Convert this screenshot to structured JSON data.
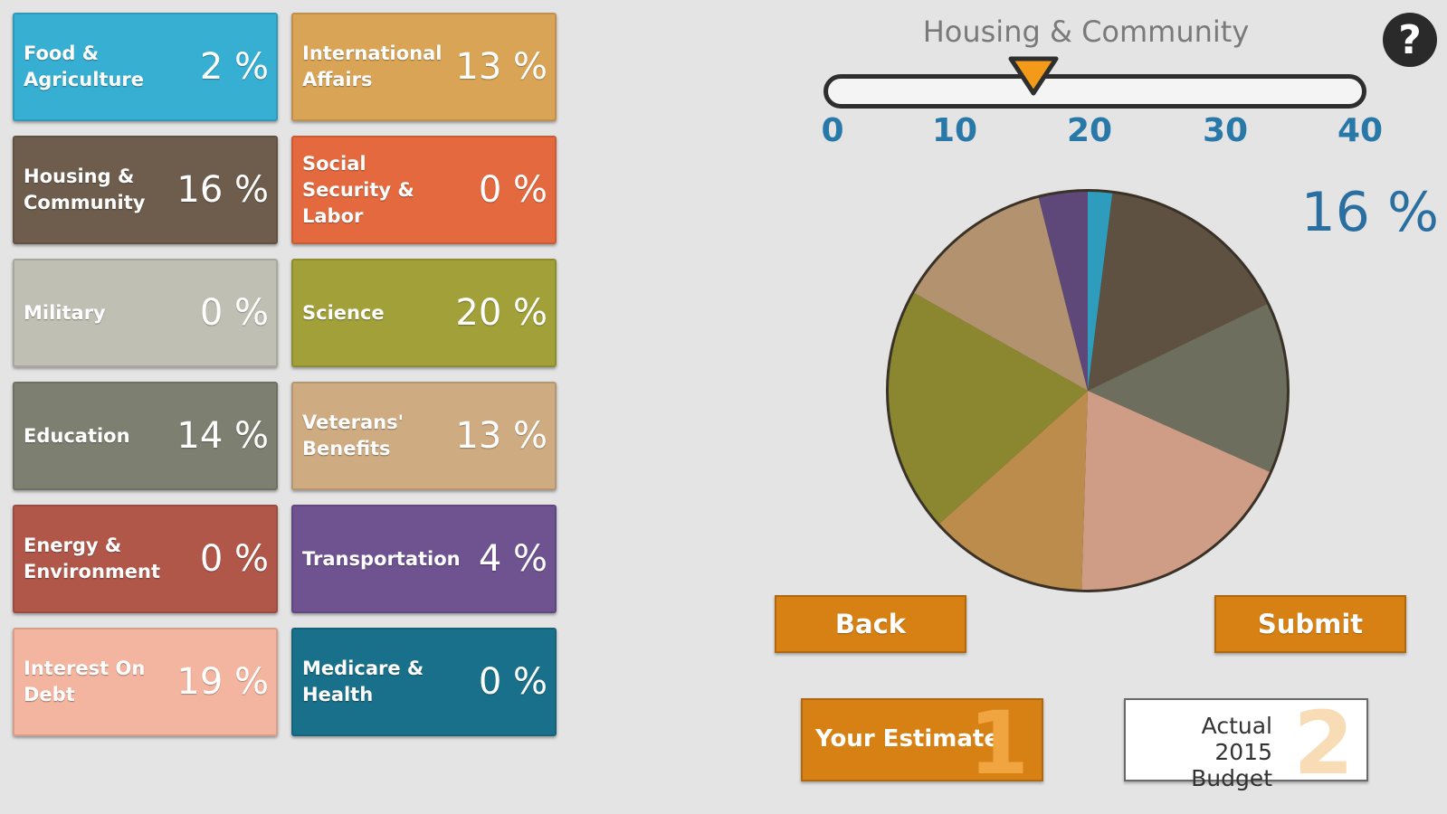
{
  "categories": [
    {
      "label": "Food &\nAgriculture",
      "value": "2 %",
      "color": "#37afd2"
    },
    {
      "label": "International\nAffairs",
      "value": "13 %",
      "color": "#d9a456"
    },
    {
      "label": "Housing &\nCommunity",
      "value": "16 %",
      "color": "#6e5d4d"
    },
    {
      "label": "Social\nSecurity &\nLabor",
      "value": "0 %",
      "color": "#e4693f"
    },
    {
      "label": "Military",
      "value": "0 %",
      "color": "#bfbfb3"
    },
    {
      "label": "Science",
      "value": "20 %",
      "color": "#a2a038"
    },
    {
      "label": "Education",
      "value": "14 %",
      "color": "#7d8071"
    },
    {
      "label": "Veterans'\nBenefits",
      "value": "13 %",
      "color": "#cfab82"
    },
    {
      "label": "Energy &\nEnvironment",
      "value": "0 %",
      "color": "#b1574a"
    },
    {
      "label": "Transportation",
      "value": "4 %",
      "color": "#6e5390"
    },
    {
      "label": "Interest On\nDebt",
      "value": "19 %",
      "color": "#f3b59f"
    },
    {
      "label": "Medicare &\nHealth",
      "value": "0 %",
      "color": "#19708a"
    }
  ],
  "slider": {
    "title": "Housing & Community",
    "ticks": [
      "0",
      "10",
      "20",
      "30",
      "40"
    ],
    "value": 16,
    "min": 0,
    "max": 40
  },
  "selected_percent": "16 %",
  "help_label": "?",
  "pie": {
    "slices": [
      {
        "name": "Food & Agriculture",
        "value": 2,
        "color": "#2e9dbd"
      },
      {
        "name": "Housing & Community",
        "value": 16,
        "color": "#5f5142"
      },
      {
        "name": "Education",
        "value": 14,
        "color": "#6d6e5e"
      },
      {
        "name": "Interest On Debt",
        "value": 19,
        "color": "#cf9c86"
      },
      {
        "name": "International Affairs",
        "value": 13,
        "color": "#bb8c4c"
      },
      {
        "name": "Science",
        "value": 20,
        "color": "#8b8731"
      },
      {
        "name": "Veterans' Benefits",
        "value": 13,
        "color": "#b3936f"
      },
      {
        "name": "Transportation",
        "value": 4,
        "color": "#5e4779"
      }
    ]
  },
  "buttons": {
    "back": "Back",
    "submit": "Submit"
  },
  "estimate": {
    "label": "Your Estimate",
    "number": "1"
  },
  "actual": {
    "label": "Actual 2015\nBudget",
    "number": "2"
  },
  "colors": {
    "accent_orange": "#d78114",
    "tick_blue": "#2878a8",
    "percent_blue": "#2a6fa0"
  }
}
